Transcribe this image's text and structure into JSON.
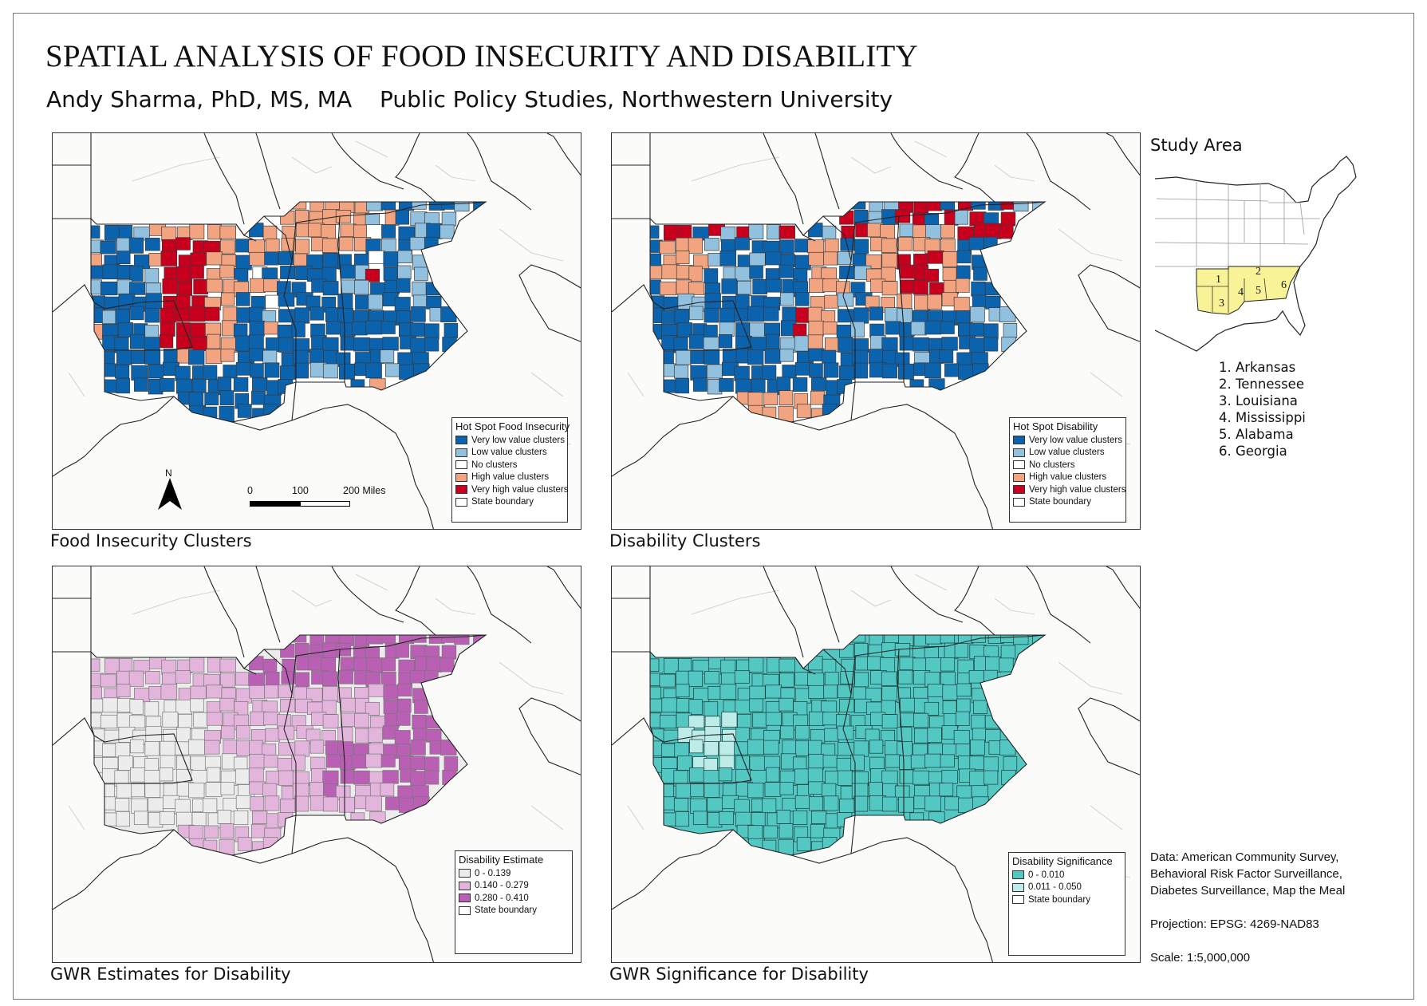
{
  "title": "SPATIAL ANALYSIS OF FOOD INSECURITY AND DISABILITY",
  "author": "Andy Sharma, PhD, MS, MA",
  "affiliation": "Public Policy Studies, Northwestern University",
  "maps": [
    {
      "caption": "Food Insecurity Clusters",
      "legend_title": "Hot Spot Food Insecurity",
      "legend": [
        {
          "label": "Very low value clusters",
          "color": "#0b62ad"
        },
        {
          "label": "Low value clusters",
          "color": "#92c1df"
        },
        {
          "label": "No clusters",
          "color": "#ffffff"
        },
        {
          "label": "High value clusters",
          "color": "#f2a481"
        },
        {
          "label": "Very high value clusters",
          "color": "#c8001e"
        },
        {
          "label": "State boundary",
          "color": "#ffffff"
        }
      ]
    },
    {
      "caption": "Disability Clusters",
      "legend_title": "Hot Spot Disability",
      "legend": [
        {
          "label": "Very low value clusters",
          "color": "#0b62ad"
        },
        {
          "label": "Low value clusters",
          "color": "#92c1df"
        },
        {
          "label": "No clusters",
          "color": "#ffffff"
        },
        {
          "label": "High value clusters",
          "color": "#f2a481"
        },
        {
          "label": "Very high value clusters",
          "color": "#c8001e"
        },
        {
          "label": "State boundary",
          "color": "#ffffff"
        }
      ]
    },
    {
      "caption": "GWR Estimates for Disability",
      "legend_title": "Disability Estimate",
      "legend": [
        {
          "label": "0 - 0.139",
          "color": "#ececec"
        },
        {
          "label": "0.140 - 0.279",
          "color": "#e3b5dc"
        },
        {
          "label": "0.280 - 0.410",
          "color": "#b960b5"
        },
        {
          "label": "State boundary",
          "color": "#ffffff"
        }
      ]
    },
    {
      "caption": "GWR Significance for Disability",
      "legend_title": "Disability Significance",
      "legend": [
        {
          "label": "0 - 0.010",
          "color": "#53c7c2"
        },
        {
          "label": "0.011 - 0.050",
          "color": "#bdebe7"
        },
        {
          "label": "State boundary",
          "color": "#ffffff"
        }
      ]
    }
  ],
  "north_arrow": "N",
  "north_icon": "north-arrow-icon",
  "scale_bar": {
    "labels": [
      "0",
      "100",
      "200 Miles"
    ]
  },
  "study_area": {
    "title": "Study Area",
    "highlight_color": "#f7f396",
    "numbers": [
      "1",
      "2",
      "3",
      "4",
      "5",
      "6"
    ],
    "states": [
      "1. Arkansas",
      "2. Tennessee",
      "3. Louisiana",
      "4. Mississippi",
      "5. Alabama",
      "6. Georgia"
    ]
  },
  "notes": {
    "data_lines": [
      "Data: American Community Survey,",
      "Behavioral Risk Factor Surveillance,",
      "Diabetes Surveillance, Map the Meal"
    ],
    "projection": "Projection: EPSG: 4269-NAD83",
    "scale": "Scale: 1:5,000,000"
  }
}
